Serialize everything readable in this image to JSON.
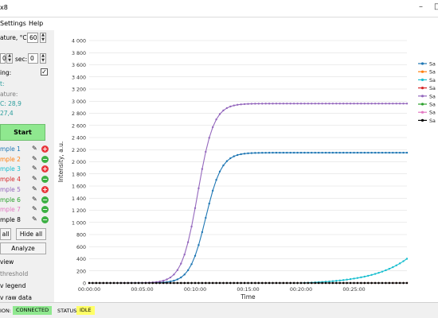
{
  "window": {
    "title": "x8",
    "minimize_icon": "minimize-icon"
  },
  "menu": {
    "items": [
      "Settings",
      "Help"
    ]
  },
  "panel": {
    "temperature_label": "ature, °C:",
    "temperature_value": "60",
    "time_min_value": "0",
    "time_sec_label": "sec:",
    "time_sec_value": "0",
    "heating_label": "ing:",
    "heating_checked": "✓",
    "status_label": "t:",
    "temperature_status_label": "ature:",
    "temp1_label": "C: 28,9",
    "temp2_label": "27,4",
    "start_label": "Start",
    "samples": [
      {
        "label": "mple 1",
        "color": "#1f77b4",
        "action": "add"
      },
      {
        "label": "mple 2",
        "color": "#ff7f0e",
        "action": "remove"
      },
      {
        "label": "mple 3",
        "color": "#17becf",
        "action": "add"
      },
      {
        "label": "mple 4",
        "color": "#d62728",
        "action": "remove"
      },
      {
        "label": "mple 5",
        "color": "#9467bd",
        "action": "add"
      },
      {
        "label": "mple 6",
        "color": "#2ca02c",
        "action": "remove"
      },
      {
        "label": "mple 7",
        "color": "#e377c2",
        "action": "remove"
      },
      {
        "label": "mple 8",
        "color": "#000000",
        "action": "remove"
      }
    ],
    "show_all_label": "all",
    "hide_all_label": "Hide all",
    "analyze_label": "Analyze",
    "options": [
      "view",
      "threshold",
      "v legend",
      "v raw data"
    ]
  },
  "chart_data": {
    "type": "line",
    "xlabel": "Time",
    "ylabel": "Intensity, a.u.",
    "x_unit": "seconds",
    "xlim": [
      0,
      1800
    ],
    "ylim": [
      0,
      4000
    ],
    "x_ticks": [
      "00:00:00",
      "00:05:00",
      "00:10:00",
      "00:15:00",
      "00:20:00",
      "00:25:00"
    ],
    "y_ticks": [
      "0",
      "200",
      "400",
      "600",
      "800",
      "1 000",
      "1 200",
      "1 400",
      "1 600",
      "1 800",
      "2 000",
      "2 200",
      "2 400",
      "2 600",
      "2 800",
      "3 000",
      "3 200",
      "3 400",
      "3 600",
      "3 800",
      "4 000"
    ],
    "grid": true,
    "legend_position": "right",
    "series": [
      {
        "name": "Sa",
        "color": "#1f77b4",
        "sigmoid": {
          "max": 2150,
          "mid": 660,
          "scale": 45
        }
      },
      {
        "name": "Sa",
        "color": "#ff7f0e",
        "flat": 0
      },
      {
        "name": "Sa",
        "color": "#17becf",
        "exp": {
          "end": 400,
          "start_t": 1200
        }
      },
      {
        "name": "Sa",
        "color": "#d62728",
        "flat": 0
      },
      {
        "name": "Sa",
        "color": "#9467bd",
        "sigmoid": {
          "max": 2960,
          "mid": 615,
          "scale": 45
        }
      },
      {
        "name": "Sa",
        "color": "#2ca02c",
        "flat": 0
      },
      {
        "name": "Sa",
        "color": "#e377c2",
        "flat": 0
      },
      {
        "name": "Sa",
        "color": "#000000",
        "flat": 0
      }
    ]
  },
  "status": {
    "connection_label": "ION:",
    "connection_value": "CONNECTED",
    "connection_color": "#8fe88f",
    "status_label": "STATUS:",
    "status_value": "IDLE",
    "status_color": "#ffff66"
  }
}
